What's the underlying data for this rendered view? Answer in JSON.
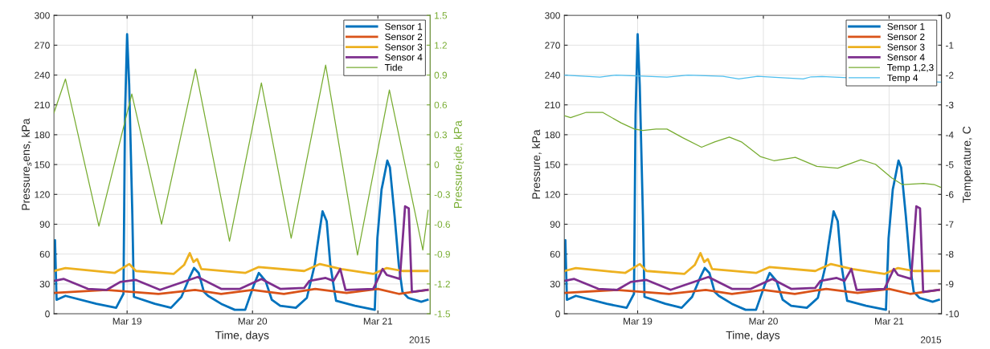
{
  "chart_data": [
    {
      "type": "line",
      "xlabel": "Time, days",
      "ylabel": "Pressure$_{s}$ens, kPa",
      "y2label": "Pressure$_{t}$ide, kPa",
      "annotations": [
        "2015"
      ],
      "xlim": [
        "2015-03-18T10:00",
        "2015-03-21T10:00"
      ],
      "xticks": [
        {
          "value": "2015-03-19",
          "label": "Mar 19"
        },
        {
          "value": "2015-03-20",
          "label": "Mar 20"
        },
        {
          "value": "2015-03-21",
          "label": "Mar 21"
        }
      ],
      "ylim": [
        0,
        300
      ],
      "yticks": [
        0,
        30,
        60,
        90,
        120,
        150,
        180,
        210,
        240,
        270,
        300
      ],
      "y2lim": [
        -1.5,
        1.5
      ],
      "y2ticks": [
        -1.5,
        -1.2,
        -0.9,
        -0.6,
        -0.3,
        0,
        0.3,
        0.6,
        0.9,
        1.2,
        1.5
      ],
      "grid": true,
      "legend": "top right",
      "line_style": "solid",
      "marker": "none",
      "series": [
        {
          "name": "Sensor 1",
          "color": "#0072bd",
          "x": [
            "2015-03-18T10:00",
            "2015-03-18T10:12",
            "2015-03-18T10:30",
            "2015-03-18T12:12",
            "2015-03-18T18:06",
            "2015-03-18T21:54",
            "2015-03-18T22:42",
            "2015-03-18T23:18",
            "2015-03-18T23:36",
            "2015-03-19T00:00",
            "2015-03-19T00:24",
            "2015-03-19T01:00",
            "2015-03-19T01:18",
            "2015-03-19T05:18",
            "2015-03-19T08:24",
            "2015-03-19T10:24",
            "2015-03-19T11:54",
            "2015-03-19T12:48",
            "2015-03-19T13:42",
            "2015-03-19T14:42",
            "2015-03-19T15:30",
            "2015-03-19T18:00",
            "2015-03-19T20:36",
            "2015-03-19T22:36",
            "2015-03-20T00:12",
            "2015-03-20T01:12",
            "2015-03-20T02:30",
            "2015-03-20T03:42",
            "2015-03-20T05:18",
            "2015-03-20T08:18",
            "2015-03-20T10:24",
            "2015-03-20T11:54",
            "2015-03-20T12:24",
            "2015-03-20T13:24",
            "2015-03-20T14:12",
            "2015-03-20T14:54",
            "2015-03-20T15:42",
            "2015-03-20T16:00",
            "2015-03-20T19:36",
            "2015-03-20T23:24",
            "2015-03-20T23:54",
            "2015-03-21T00:42",
            "2015-03-21T00:54",
            "2015-03-21T01:48",
            "2015-03-21T02:18",
            "2015-03-21T03:12",
            "2015-03-21T04:00",
            "2015-03-21T04:42",
            "2015-03-21T05:48",
            "2015-03-21T08:18",
            "2015-03-21T09:30"
          ],
          "values": [
            45,
            74,
            14,
            18,
            10,
            6,
            14,
            20,
            200,
            281,
            230,
            100,
            17,
            10,
            6,
            17,
            36,
            46,
            41,
            22,
            18,
            10,
            4,
            4,
            28,
            41,
            33,
            14,
            8,
            6,
            16,
            49,
            68,
            103,
            93,
            49,
            22,
            13,
            8,
            4,
            76,
            125,
            130,
            154,
            147,
            98,
            49,
            22,
            16,
            12,
            14
          ]
        },
        {
          "name": "Sensor 2",
          "color": "#d95319",
          "x": [
            "2015-03-18T10:00",
            "2015-03-18T20:00",
            "2015-03-19T06:00",
            "2015-03-19T13:00",
            "2015-03-19T18:00",
            "2015-03-20T00:00",
            "2015-03-20T06:00",
            "2015-03-20T12:00",
            "2015-03-20T18:00",
            "2015-03-21T00:00",
            "2015-03-21T04:00",
            "2015-03-21T09:30"
          ],
          "values": [
            21,
            24,
            20,
            24,
            20,
            24,
            20,
            25,
            21,
            25,
            20,
            24
          ]
        },
        {
          "name": "Sensor 3",
          "color": "#edb120",
          "x": [
            "2015-03-18T10:00",
            "2015-03-18T12:12",
            "2015-03-18T21:36",
            "2015-03-19T00:24",
            "2015-03-19T01:42",
            "2015-03-19T08:54",
            "2015-03-19T10:54",
            "2015-03-19T12:00",
            "2015-03-19T12:42",
            "2015-03-19T13:24",
            "2015-03-19T14:12",
            "2015-03-19T22:36",
            "2015-03-20T01:12",
            "2015-03-20T09:54",
            "2015-03-20T12:54",
            "2015-03-20T17:00",
            "2015-03-20T23:06",
            "2015-03-21T01:42",
            "2015-03-21T04:42",
            "2015-03-21T09:30"
          ],
          "values": [
            43,
            46,
            41,
            50,
            43,
            40,
            49,
            61,
            52,
            55,
            45,
            41,
            47,
            43,
            50,
            45,
            40,
            46,
            43,
            43
          ]
        },
        {
          "name": "Sensor 4",
          "color": "#7e2f8e",
          "x": [
            "2015-03-18T10:00",
            "2015-03-18T11:54",
            "2015-03-18T16:30",
            "2015-03-18T20:06",
            "2015-03-18T22:42",
            "2015-03-19T01:42",
            "2015-03-19T06:18",
            "2015-03-19T13:30",
            "2015-03-19T18:00",
            "2015-03-19T21:36",
            "2015-03-20T01:42",
            "2015-03-20T05:18",
            "2015-03-20T09:54",
            "2015-03-20T10:54",
            "2015-03-20T14:00",
            "2015-03-20T15:30",
            "2015-03-20T16:48",
            "2015-03-20T17:48",
            "2015-03-20T23:06",
            "2015-03-21T00:54",
            "2015-03-21T01:42",
            "2015-03-21T04:12",
            "2015-03-21T05:12",
            "2015-03-21T05:54",
            "2015-03-21T06:30",
            "2015-03-21T09:30"
          ],
          "values": [
            33,
            35,
            25,
            24,
            32,
            34,
            24,
            37,
            25,
            25,
            35,
            25,
            26,
            33,
            36,
            33,
            45,
            24,
            25,
            45,
            39,
            35,
            108,
            106,
            22,
            24
          ]
        },
        {
          "name": "Tide",
          "color": "#77ac30",
          "axis": "y2",
          "x": [
            "2015-03-18T10:00",
            "2015-03-18T12:12",
            "2015-03-18T18:36",
            "2015-03-19T00:54",
            "2015-03-19T06:36",
            "2015-03-19T13:06",
            "2015-03-19T19:36",
            "2015-03-20T01:42",
            "2015-03-20T07:24",
            "2015-03-20T14:00",
            "2015-03-20T20:06",
            "2015-03-21T02:12",
            "2015-03-21T08:36",
            "2015-03-21T09:36"
          ],
          "values": [
            0.52,
            0.86,
            -0.62,
            0.71,
            -0.6,
            0.96,
            -0.77,
            0.82,
            -0.74,
            1.0,
            -0.91,
            0.75,
            -0.86,
            -0.46
          ]
        }
      ]
    },
    {
      "type": "line",
      "xlabel": "Time, days",
      "ylabel": "Pressure, kPa",
      "y2label": "Temperature, C",
      "annotations": [
        "2015"
      ],
      "xlim": [
        "2015-03-18T10:00",
        "2015-03-21T10:00"
      ],
      "xticks": [
        {
          "value": "2015-03-19",
          "label": "Mar 19"
        },
        {
          "value": "2015-03-20",
          "label": "Mar 20"
        },
        {
          "value": "2015-03-21",
          "label": "Mar 21"
        }
      ],
      "ylim": [
        0,
        300
      ],
      "yticks": [
        0,
        30,
        60,
        90,
        120,
        150,
        180,
        210,
        240,
        270,
        300
      ],
      "y2lim": [
        -10,
        0
      ],
      "y2ticks": [
        -10,
        -9,
        -8,
        -7,
        -6,
        -5,
        -4,
        -3,
        -2,
        -1,
        0
      ],
      "grid": true,
      "legend": "top right",
      "line_style": "solid",
      "marker": "none",
      "series": [
        {
          "name": "Sensor 1",
          "color": "#0072bd",
          "x": [
            "2015-03-18T10:00",
            "2015-03-18T10:12",
            "2015-03-18T10:30",
            "2015-03-18T12:12",
            "2015-03-18T18:06",
            "2015-03-18T21:54",
            "2015-03-18T22:42",
            "2015-03-18T23:18",
            "2015-03-18T23:36",
            "2015-03-19T00:00",
            "2015-03-19T00:24",
            "2015-03-19T01:00",
            "2015-03-19T01:18",
            "2015-03-19T05:18",
            "2015-03-19T08:24",
            "2015-03-19T10:24",
            "2015-03-19T11:54",
            "2015-03-19T12:48",
            "2015-03-19T13:42",
            "2015-03-19T14:42",
            "2015-03-19T15:30",
            "2015-03-19T18:00",
            "2015-03-19T20:36",
            "2015-03-19T22:36",
            "2015-03-20T00:12",
            "2015-03-20T01:12",
            "2015-03-20T02:30",
            "2015-03-20T03:42",
            "2015-03-20T05:18",
            "2015-03-20T08:18",
            "2015-03-20T10:24",
            "2015-03-20T11:54",
            "2015-03-20T12:24",
            "2015-03-20T13:24",
            "2015-03-20T14:12",
            "2015-03-20T14:54",
            "2015-03-20T15:42",
            "2015-03-20T16:00",
            "2015-03-20T19:36",
            "2015-03-20T23:24",
            "2015-03-20T23:54",
            "2015-03-21T00:42",
            "2015-03-21T00:54",
            "2015-03-21T01:48",
            "2015-03-21T02:18",
            "2015-03-21T03:12",
            "2015-03-21T04:00",
            "2015-03-21T04:42",
            "2015-03-21T05:48",
            "2015-03-21T08:18",
            "2015-03-21T09:30"
          ],
          "values": [
            45,
            74,
            14,
            18,
            10,
            6,
            14,
            20,
            200,
            281,
            230,
            100,
            17,
            10,
            6,
            17,
            36,
            46,
            41,
            22,
            18,
            10,
            4,
            4,
            28,
            41,
            33,
            14,
            8,
            6,
            16,
            49,
            68,
            103,
            93,
            49,
            22,
            13,
            8,
            4,
            76,
            125,
            130,
            154,
            147,
            98,
            49,
            22,
            16,
            12,
            14
          ]
        },
        {
          "name": "Sensor 2",
          "color": "#d95319",
          "x": [
            "2015-03-18T10:00",
            "2015-03-18T20:00",
            "2015-03-19T06:00",
            "2015-03-19T13:00",
            "2015-03-19T18:00",
            "2015-03-20T00:00",
            "2015-03-20T06:00",
            "2015-03-20T12:00",
            "2015-03-20T18:00",
            "2015-03-21T00:00",
            "2015-03-21T04:00",
            "2015-03-21T09:30"
          ],
          "values": [
            21,
            24,
            20,
            24,
            20,
            24,
            20,
            25,
            21,
            25,
            20,
            24
          ]
        },
        {
          "name": "Sensor 3",
          "color": "#edb120",
          "x": [
            "2015-03-18T10:00",
            "2015-03-18T12:12",
            "2015-03-18T21:36",
            "2015-03-19T00:24",
            "2015-03-19T01:42",
            "2015-03-19T08:54",
            "2015-03-19T10:54",
            "2015-03-19T12:00",
            "2015-03-19T12:42",
            "2015-03-19T13:24",
            "2015-03-19T14:12",
            "2015-03-19T22:36",
            "2015-03-20T01:12",
            "2015-03-20T09:54",
            "2015-03-20T12:54",
            "2015-03-20T17:00",
            "2015-03-20T23:06",
            "2015-03-21T01:42",
            "2015-03-21T04:42",
            "2015-03-21T09:30"
          ],
          "values": [
            43,
            46,
            41,
            50,
            43,
            40,
            49,
            61,
            52,
            55,
            45,
            41,
            47,
            43,
            50,
            45,
            40,
            46,
            43,
            43
          ]
        },
        {
          "name": "Sensor 4",
          "color": "#7e2f8e",
          "x": [
            "2015-03-18T10:00",
            "2015-03-18T11:54",
            "2015-03-18T16:30",
            "2015-03-18T20:06",
            "2015-03-18T22:42",
            "2015-03-19T01:42",
            "2015-03-19T06:18",
            "2015-03-19T13:30",
            "2015-03-19T18:00",
            "2015-03-19T21:36",
            "2015-03-20T01:42",
            "2015-03-20T05:18",
            "2015-03-20T09:54",
            "2015-03-20T10:54",
            "2015-03-20T14:00",
            "2015-03-20T15:30",
            "2015-03-20T16:48",
            "2015-03-20T17:48",
            "2015-03-20T23:06",
            "2015-03-21T00:54",
            "2015-03-21T01:42",
            "2015-03-21T04:12",
            "2015-03-21T05:12",
            "2015-03-21T05:54",
            "2015-03-21T06:30",
            "2015-03-21T09:30"
          ],
          "values": [
            33,
            35,
            25,
            24,
            32,
            34,
            24,
            37,
            25,
            25,
            35,
            25,
            26,
            33,
            36,
            33,
            45,
            24,
            25,
            45,
            39,
            35,
            108,
            106,
            22,
            24
          ]
        },
        {
          "name": "Temp 1,2,3",
          "color": "#77ac30",
          "axis": "y2",
          "x": [
            "2015-03-18T10:00",
            "2015-03-18T11:12",
            "2015-03-18T14:12",
            "2015-03-18T17:18",
            "2015-03-18T20:54",
            "2015-03-18T23:24",
            "2015-03-19T01:00",
            "2015-03-19T03:30",
            "2015-03-19T05:36",
            "2015-03-19T08:36",
            "2015-03-19T12:12",
            "2015-03-19T14:42",
            "2015-03-19T17:30",
            "2015-03-19T19:48",
            "2015-03-19T23:24",
            "2015-03-20T02:00",
            "2015-03-20T06:06",
            "2015-03-20T10:12",
            "2015-03-20T14:12",
            "2015-03-20T18:36",
            "2015-03-20T21:24",
            "2015-03-21T00:30",
            "2015-03-21T02:30",
            "2015-03-21T06:36",
            "2015-03-21T08:36",
            "2015-03-21T09:48"
          ],
          "values": [
            -3.36,
            -3.43,
            -3.25,
            -3.25,
            -3.61,
            -3.81,
            -3.86,
            -3.81,
            -3.81,
            -4.1,
            -4.42,
            -4.24,
            -4.08,
            -4.24,
            -4.73,
            -4.87,
            -4.76,
            -5.06,
            -5.12,
            -4.84,
            -4.99,
            -5.45,
            -5.67,
            -5.63,
            -5.67,
            -5.76
          ]
        },
        {
          "name": "Temp 4",
          "color": "#4dbeee",
          "axis": "y2",
          "x": [
            "2015-03-18T10:00",
            "2015-03-18T16:48",
            "2015-03-18T19:54",
            "2015-03-19T05:36",
            "2015-03-19T09:36",
            "2015-03-19T16:18",
            "2015-03-19T19:18",
            "2015-03-19T22:54",
            "2015-03-20T07:36",
            "2015-03-20T09:06",
            "2015-03-20T11:12",
            "2015-03-21T09:48"
          ],
          "values": [
            -2.0,
            -2.07,
            -2.0,
            -2.07,
            -2.0,
            -2.04,
            -2.13,
            -2.04,
            -2.13,
            -2.06,
            -2.05,
            -2.24
          ]
        }
      ]
    }
  ]
}
